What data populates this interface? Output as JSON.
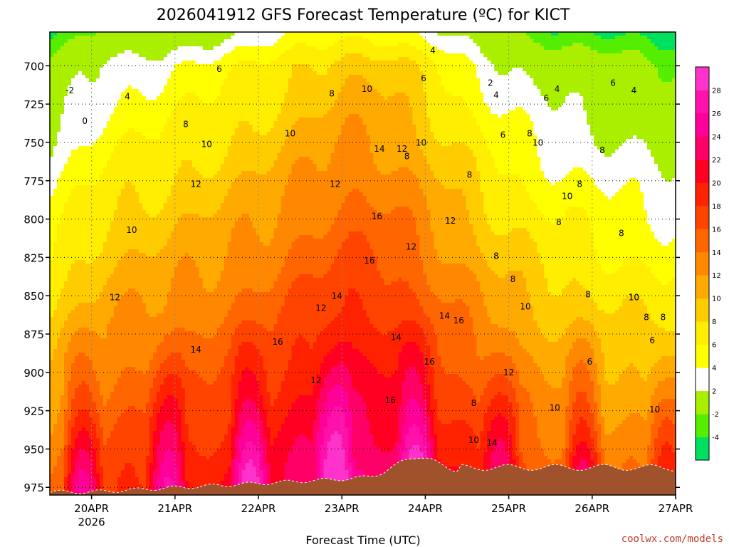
{
  "chart_data": {
    "type": "heatmap",
    "title": "2026041912 GFS Forecast Temperature (ºC) for KICT",
    "xlabel": "Forecast Time (UTC)",
    "ylabel": "",
    "credit": "coolwx.com/models",
    "x_ticks": [
      {
        "label": "20APR",
        "sublabel": "2026",
        "day": 20
      },
      {
        "label": "21APR",
        "sublabel": "",
        "day": 21
      },
      {
        "label": "22APR",
        "sublabel": "",
        "day": 22
      },
      {
        "label": "23APR",
        "sublabel": "",
        "day": 23
      },
      {
        "label": "24APR",
        "sublabel": "",
        "day": 24
      },
      {
        "label": "25APR",
        "sublabel": "",
        "day": 25
      },
      {
        "label": "26APR",
        "sublabel": "",
        "day": 26
      },
      {
        "label": "27APR",
        "sublabel": "",
        "day": 27
      }
    ],
    "x_range_days": [
      19.5,
      27.0
    ],
    "y_ticks": [
      700,
      725,
      750,
      775,
      800,
      825,
      850,
      875,
      900,
      925,
      950,
      975
    ],
    "y_range_hpa": [
      678,
      980
    ],
    "colorbar": {
      "levels": [
        -4,
        -2,
        2,
        4,
        6,
        8,
        10,
        12,
        14,
        16,
        18,
        20,
        22,
        24,
        26,
        28
      ],
      "colors": [
        "#00e060",
        "#55ee00",
        "#aaee00",
        "#ffffff",
        "#ffff00",
        "#ffee00",
        "#ffcc00",
        "#ffaa00",
        "#ff8800",
        "#ff6600",
        "#ff4400",
        "#ff2200",
        "#ff0022",
        "#ff0066",
        "#ff0099",
        "#ff11aa",
        "#ff33cc"
      ]
    },
    "contour_labels": [
      {
        "text": "-2",
        "day": 19.74,
        "p": 718
      },
      {
        "text": "0",
        "day": 19.92,
        "p": 738
      },
      {
        "text": "4",
        "day": 20.43,
        "p": 722
      },
      {
        "text": "6",
        "day": 21.53,
        "p": 704
      },
      {
        "text": "8",
        "day": 21.13,
        "p": 740
      },
      {
        "text": "10",
        "day": 21.38,
        "p": 753
      },
      {
        "text": "10",
        "day": 22.38,
        "p": 746
      },
      {
        "text": "12",
        "day": 21.25,
        "p": 779
      },
      {
        "text": "12",
        "day": 22.92,
        "p": 779
      },
      {
        "text": "10",
        "day": 20.48,
        "p": 809
      },
      {
        "text": "12",
        "day": 20.28,
        "p": 853
      },
      {
        "text": "14",
        "day": 21.25,
        "p": 887
      },
      {
        "text": "16",
        "day": 22.23,
        "p": 882
      },
      {
        "text": "8",
        "day": 22.88,
        "p": 720
      },
      {
        "text": "10",
        "day": 23.3,
        "p": 717
      },
      {
        "text": "14",
        "day": 23.45,
        "p": 756
      },
      {
        "text": "12",
        "day": 23.72,
        "p": 756
      },
      {
        "text": "8",
        "day": 23.78,
        "p": 761
      },
      {
        "text": "10",
        "day": 23.95,
        "p": 752
      },
      {
        "text": "16",
        "day": 23.42,
        "p": 800
      },
      {
        "text": "12",
        "day": 23.83,
        "p": 820
      },
      {
        "text": "16",
        "day": 23.33,
        "p": 829
      },
      {
        "text": "14",
        "day": 22.94,
        "p": 852
      },
      {
        "text": "12",
        "day": 22.75,
        "p": 860
      },
      {
        "text": "12",
        "day": 22.69,
        "p": 907
      },
      {
        "text": "14",
        "day": 23.65,
        "p": 879
      },
      {
        "text": "16",
        "day": 23.58,
        "p": 920
      },
      {
        "text": "16",
        "day": 24.05,
        "p": 895
      },
      {
        "text": "14",
        "day": 24.23,
        "p": 865
      },
      {
        "text": "16",
        "day": 24.4,
        "p": 868
      },
      {
        "text": "12",
        "day": 24.3,
        "p": 803
      },
      {
        "text": "4",
        "day": 24.09,
        "p": 692
      },
      {
        "text": "6",
        "day": 23.98,
        "p": 710
      },
      {
        "text": "8",
        "day": 24.53,
        "p": 773
      },
      {
        "text": "8",
        "day": 24.85,
        "p": 826
      },
      {
        "text": "8",
        "day": 25.05,
        "p": 841
      },
      {
        "text": "10",
        "day": 25.2,
        "p": 859
      },
      {
        "text": "12",
        "day": 25.0,
        "p": 902
      },
      {
        "text": "8",
        "day": 24.58,
        "p": 922
      },
      {
        "text": "10",
        "day": 24.58,
        "p": 946
      },
      {
        "text": "14",
        "day": 24.8,
        "p": 948
      },
      {
        "text": "2",
        "day": 24.78,
        "p": 713
      },
      {
        "text": "4",
        "day": 24.85,
        "p": 721
      },
      {
        "text": "6",
        "day": 24.93,
        "p": 747
      },
      {
        "text": "8",
        "day": 25.25,
        "p": 746
      },
      {
        "text": "10",
        "day": 25.35,
        "p": 752
      },
      {
        "text": "6",
        "day": 25.45,
        "p": 723
      },
      {
        "text": "4",
        "day": 25.58,
        "p": 717
      },
      {
        "text": "8",
        "day": 26.12,
        "p": 757
      },
      {
        "text": "8",
        "day": 25.85,
        "p": 779
      },
      {
        "text": "10",
        "day": 25.7,
        "p": 787
      },
      {
        "text": "8",
        "day": 25.6,
        "p": 804
      },
      {
        "text": "8",
        "day": 26.35,
        "p": 811
      },
      {
        "text": "6",
        "day": 26.25,
        "p": 713
      },
      {
        "text": "4",
        "day": 26.5,
        "p": 718
      },
      {
        "text": "10",
        "day": 25.55,
        "p": 925
      },
      {
        "text": "8",
        "day": 25.95,
        "p": 851
      },
      {
        "text": "10",
        "day": 26.5,
        "p": 853
      },
      {
        "text": "8",
        "day": 26.65,
        "p": 866
      },
      {
        "text": "8",
        "day": 26.85,
        "p": 866
      },
      {
        "text": "6",
        "day": 26.72,
        "p": 881
      },
      {
        "text": "6",
        "day": 25.97,
        "p": 895
      },
      {
        "text": "10",
        "day": 26.75,
        "p": 926
      }
    ]
  }
}
